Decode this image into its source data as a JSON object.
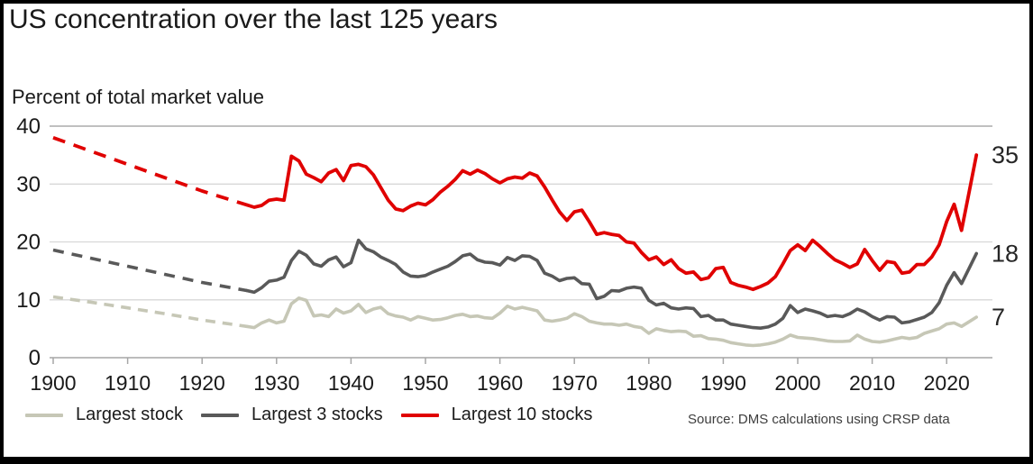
{
  "page": {
    "title": "US concentration over the last 125 years",
    "subtitle": "Percent of total market value",
    "source": "Source: DMS calculations using CRSP data"
  },
  "colors": {
    "largest_stock": "#c6c7b6",
    "largest_3_stocks": "#595959",
    "largest_10_stocks": "#e00000",
    "grid": "#d8d8d8",
    "grid_top": "#9a9a9a",
    "axis": "#a6a6a6",
    "text": "#1a1a1a"
  },
  "chart_data": {
    "type": "line",
    "title": "US concentration over the last 125 years",
    "ylabel": "Percent of total market value",
    "xlabel": "",
    "ylim": [
      0,
      40
    ],
    "xlim": [
      1900,
      2025
    ],
    "y_ticks": [
      0,
      10,
      20,
      30,
      40
    ],
    "x_ticks": [
      1900,
      1910,
      1920,
      1930,
      1940,
      1950,
      1960,
      1970,
      1980,
      1990,
      2000,
      2010,
      2020
    ],
    "grid": "horizontal",
    "legend_position": "bottom",
    "series": [
      {
        "name": "Largest stock",
        "color": "#c6c7b6",
        "end_label": "7",
        "dashed": {
          "x": [
            1900,
            1905,
            1910,
            1915,
            1920,
            1926
          ],
          "y": [
            10.5,
            9.6,
            8.6,
            7.6,
            6.5,
            5.4
          ]
        },
        "solid": {
          "x_start": 1926,
          "values": [
            5.4,
            5.2,
            6.0,
            6.5,
            6.0,
            6.3,
            9.3,
            10.3,
            9.9,
            7.2,
            7.4,
            7.1,
            8.4,
            7.7,
            8.1,
            9.2,
            7.8,
            8.4,
            8.7,
            7.6,
            7.2,
            7.0,
            6.5,
            7.1,
            6.8,
            6.5,
            6.6,
            6.9,
            7.3,
            7.5,
            7.1,
            7.2,
            6.9,
            6.8,
            7.7,
            8.9,
            8.4,
            8.7,
            8.4,
            8.1,
            6.5,
            6.3,
            6.5,
            6.8,
            7.6,
            7.1,
            6.3,
            6.0,
            5.8,
            5.8,
            5.6,
            5.8,
            5.4,
            5.2,
            4.2,
            5.0,
            4.7,
            4.5,
            4.6,
            4.5,
            3.7,
            3.8,
            3.3,
            3.2,
            3.0,
            2.6,
            2.4,
            2.2,
            2.1,
            2.2,
            2.4,
            2.7,
            3.2,
            3.9,
            3.5,
            3.4,
            3.3,
            3.1,
            2.9,
            2.8,
            2.8,
            2.9,
            3.9,
            3.2,
            2.8,
            2.7,
            2.9,
            3.2,
            3.5,
            3.3,
            3.5,
            4.2,
            4.6,
            5.0,
            5.8,
            6.0,
            5.4,
            6.2,
            7.0
          ]
        }
      },
      {
        "name": "Largest 3 stocks",
        "color": "#595959",
        "end_label": "18",
        "dashed": {
          "x": [
            1900,
            1905,
            1910,
            1915,
            1920,
            1926
          ],
          "y": [
            18.6,
            17.2,
            15.8,
            14.4,
            13.0,
            11.6
          ]
        },
        "solid": {
          "x_start": 1926,
          "values": [
            11.6,
            11.3,
            12.1,
            13.2,
            13.4,
            13.9,
            16.8,
            18.4,
            17.7,
            16.2,
            15.8,
            16.9,
            17.4,
            15.7,
            16.4,
            20.3,
            18.8,
            18.3,
            17.4,
            16.8,
            16.1,
            14.8,
            14.1,
            14.0,
            14.2,
            14.8,
            15.3,
            15.8,
            16.6,
            17.6,
            17.9,
            16.9,
            16.5,
            16.4,
            16.0,
            17.3,
            16.8,
            17.6,
            17.5,
            16.8,
            14.6,
            14.1,
            13.3,
            13.7,
            13.8,
            12.8,
            12.7,
            10.2,
            10.6,
            11.6,
            11.5,
            12.0,
            12.2,
            12.0,
            9.9,
            9.1,
            9.4,
            8.6,
            8.4,
            8.6,
            8.5,
            7.1,
            7.3,
            6.5,
            6.5,
            5.8,
            5.6,
            5.4,
            5.2,
            5.1,
            5.3,
            5.8,
            6.8,
            9.0,
            7.8,
            8.4,
            8.1,
            7.7,
            7.1,
            7.3,
            7.1,
            7.6,
            8.4,
            7.9,
            7.1,
            6.5,
            7.1,
            7.0,
            6.0,
            6.2,
            6.6,
            7.0,
            7.8,
            9.5,
            12.5,
            14.7,
            12.8,
            15.4,
            18.0
          ]
        }
      },
      {
        "name": "Largest 10 stocks",
        "color": "#e00000",
        "end_label": "35",
        "dashed": {
          "x": [
            1900,
            1905,
            1910,
            1915,
            1920,
            1926
          ],
          "y": [
            38.0,
            35.7,
            33.4,
            31.1,
            28.8,
            26.4
          ]
        },
        "solid": {
          "x_start": 1926,
          "values": [
            26.4,
            26.0,
            26.3,
            27.2,
            27.4,
            27.2,
            34.8,
            34.0,
            31.7,
            31.1,
            30.4,
            31.9,
            32.5,
            30.6,
            33.2,
            33.4,
            33.0,
            31.6,
            29.4,
            27.2,
            25.7,
            25.4,
            26.2,
            26.7,
            26.4,
            27.3,
            28.6,
            29.6,
            30.8,
            32.3,
            31.7,
            32.4,
            31.8,
            30.9,
            30.2,
            30.9,
            31.2,
            31.0,
            31.9,
            31.4,
            29.5,
            27.3,
            25.2,
            23.7,
            25.2,
            25.5,
            23.5,
            21.3,
            21.6,
            21.3,
            21.1,
            20.0,
            19.8,
            18.2,
            16.9,
            17.4,
            16.1,
            16.9,
            15.4,
            14.6,
            14.8,
            13.5,
            13.8,
            15.4,
            15.6,
            13.0,
            12.5,
            12.2,
            11.8,
            12.3,
            12.9,
            14.0,
            16.2,
            18.5,
            19.5,
            18.5,
            20.3,
            19.2,
            18.0,
            16.9,
            16.3,
            15.6,
            16.2,
            18.7,
            16.8,
            15.1,
            16.6,
            16.4,
            14.6,
            14.8,
            16.1,
            16.1,
            17.4,
            19.5,
            23.5,
            26.5,
            22.0,
            28.5,
            35.0
          ]
        }
      }
    ]
  }
}
